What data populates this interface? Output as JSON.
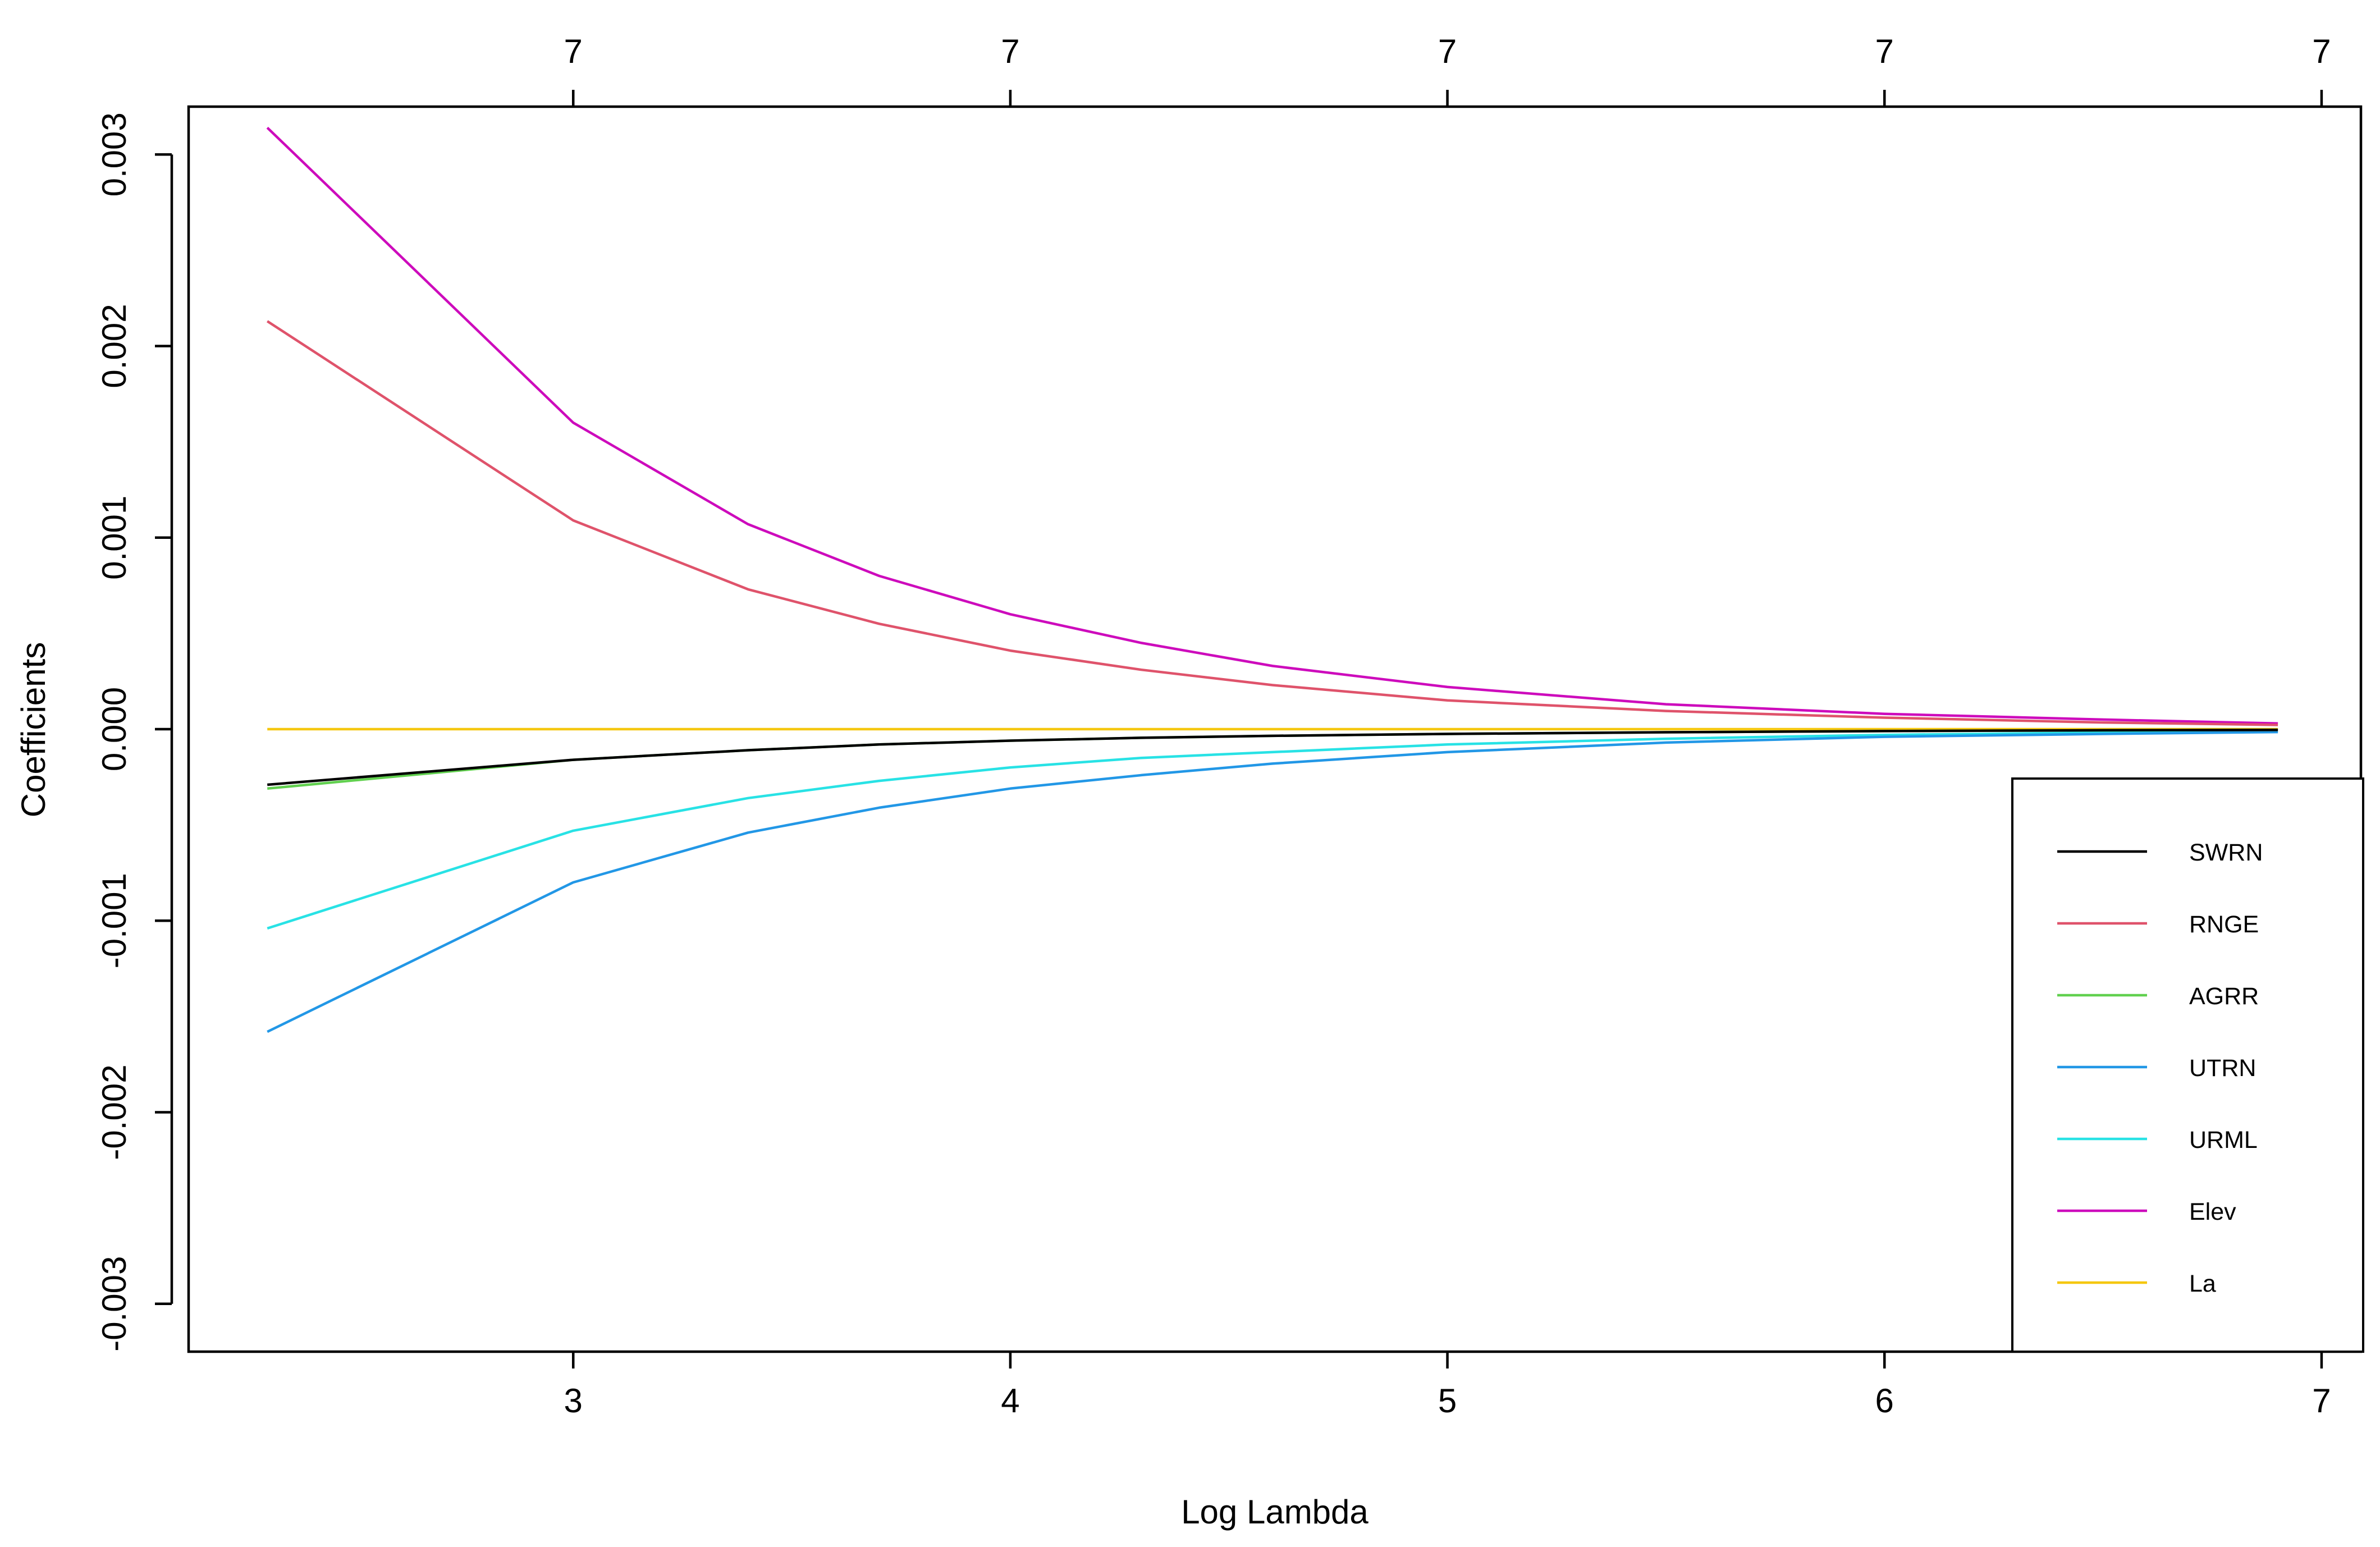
{
  "chart_data": {
    "type": "line",
    "title": "",
    "xlabel": "Log Lambda",
    "ylabel": "Coefficients",
    "xlim": [
      2.12,
      7.09
    ],
    "ylim": [
      -0.00325,
      0.00325
    ],
    "x_ticks": [
      3,
      4,
      5,
      6,
      7
    ],
    "x_tick_labels": [
      "3",
      "4",
      "5",
      "6",
      "7"
    ],
    "y_ticks": [
      -0.003,
      -0.002,
      -0.001,
      0.0,
      0.001,
      0.002,
      0.003
    ],
    "y_tick_labels": [
      "-0.003",
      "-0.002",
      "-0.001",
      "0.000",
      "0.001",
      "0.002",
      "0.003"
    ],
    "top_axis": {
      "ticks": [
        3,
        4,
        5,
        6,
        7
      ],
      "labels": [
        "7",
        "7",
        "7",
        "7",
        "7"
      ]
    },
    "grid": false,
    "legend_position": "bottom-right",
    "x": [
      2.3,
      3.0,
      3.4,
      3.7,
      4.0,
      4.3,
      4.6,
      5.0,
      5.5,
      6.0,
      6.5,
      6.9
    ],
    "series": [
      {
        "name": "SWRN",
        "color": "#000000",
        "values": [
          -0.00029,
          -0.00016,
          -0.00011,
          -8e-05,
          -6e-05,
          -4.5e-05,
          -3.5e-05,
          -2.5e-05,
          -1.6e-05,
          -1e-05,
          -6e-06,
          -4e-06
        ]
      },
      {
        "name": "RNGE",
        "color": "#DF536B",
        "values": [
          0.00213,
          0.00109,
          0.00073,
          0.00055,
          0.00041,
          0.00031,
          0.00023,
          0.00015,
          9.5e-05,
          6e-05,
          3.5e-05,
          2.2e-05
        ]
      },
      {
        "name": "AGRR",
        "color": "#61D04F",
        "values": [
          -0.00031,
          -0.00016,
          -0.00011,
          -8e-05,
          -6e-05,
          -4.5e-05,
          -3.5e-05,
          -2.5e-05,
          -1.6e-05,
          -1e-05,
          -6e-06,
          -4e-06
        ]
      },
      {
        "name": "UTRN",
        "color": "#2297E6",
        "values": [
          -0.00158,
          -0.0008,
          -0.00054,
          -0.00041,
          -0.00031,
          -0.00024,
          -0.00018,
          -0.00012,
          -7e-05,
          -4e-05,
          -2.5e-05,
          -1.5e-05
        ]
      },
      {
        "name": "URML",
        "color": "#28E2E5",
        "values": [
          -0.00104,
          -0.00053,
          -0.00036,
          -0.00027,
          -0.0002,
          -0.00015,
          -0.00012,
          -8e-05,
          -5e-05,
          -3e-05,
          -1.8e-05,
          -1.2e-05
        ]
      },
      {
        "name": "Elev",
        "color": "#CD0BBC",
        "values": [
          0.00314,
          0.0016,
          0.00107,
          0.0008,
          0.0006,
          0.00045,
          0.00033,
          0.00022,
          0.00013,
          8e-05,
          5e-05,
          3e-05
        ]
      },
      {
        "name": "La",
        "color": "#F5C710",
        "values": [
          0.0,
          0.0,
          0.0,
          0.0,
          0.0,
          0.0,
          0.0,
          0.0,
          0.0,
          0.0,
          0.0,
          0.0
        ]
      }
    ]
  }
}
